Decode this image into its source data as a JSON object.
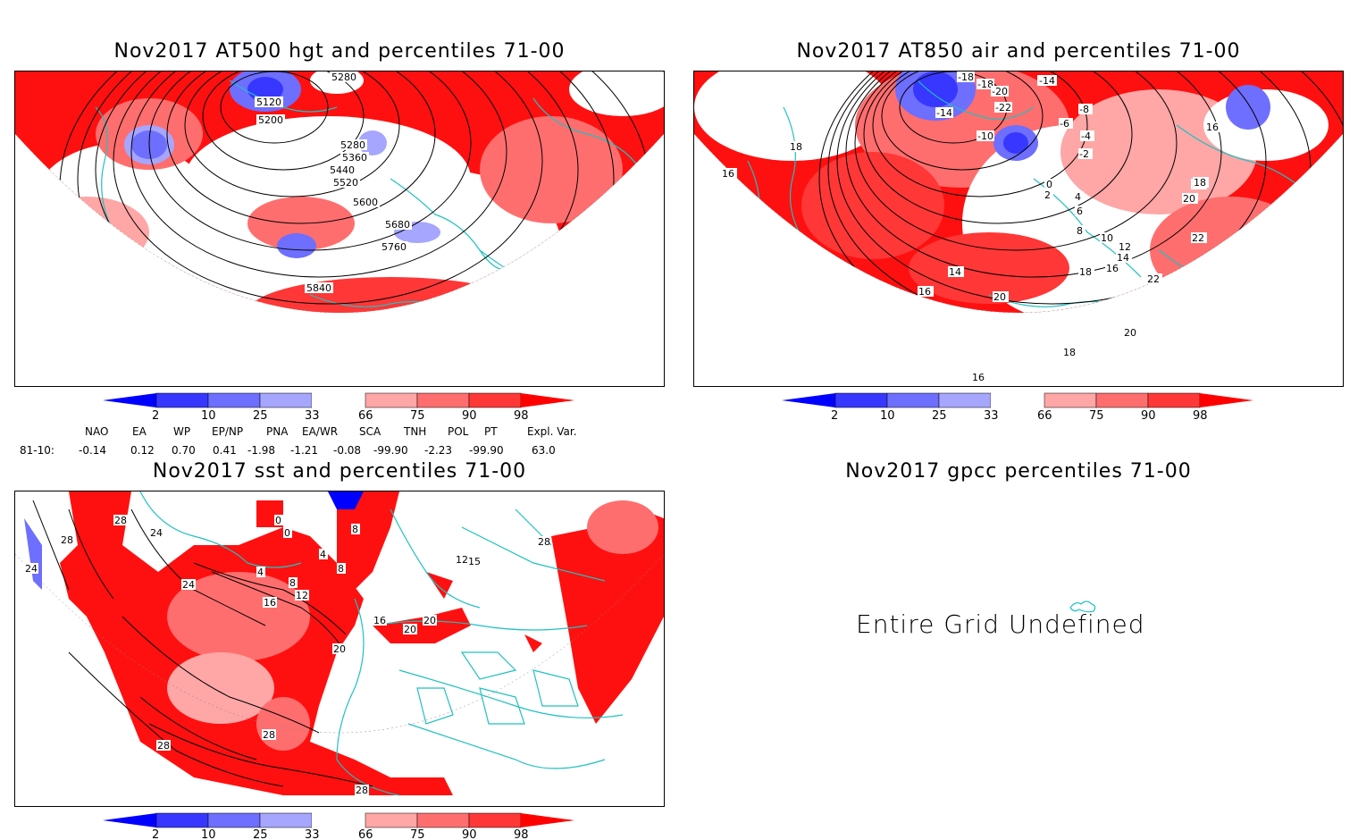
{
  "panels": {
    "hgt": {
      "title": "Nov2017 AT500 hgt and percentiles 71-00",
      "contour_labels": [
        "5280",
        "5120",
        "5200",
        "5280",
        "5360",
        "5440",
        "5520",
        "5600",
        "5680",
        "5760",
        "5840"
      ]
    },
    "air": {
      "title": "Nov2017 AT850 air and percentiles 71-00",
      "contour_labels": [
        "-18",
        "-18",
        "-14",
        "-14",
        "-20",
        "-22",
        "-8",
        "-6",
        "-4",
        "-2",
        "-10",
        "0",
        "2",
        "4",
        "6",
        "8",
        "10",
        "12",
        "14",
        "16",
        "18",
        "20",
        "22",
        "16",
        "18",
        "20",
        "22",
        "14",
        "16",
        "20",
        "18",
        "20",
        "16",
        "16",
        "18"
      ]
    },
    "sst": {
      "title": "Nov2017 sst and percentiles 71-00",
      "contour_labels": [
        "28",
        "24",
        "28",
        "24",
        "0",
        "0",
        "4",
        "4",
        "8",
        "8",
        "8",
        "12",
        "16",
        "16",
        "20",
        "24",
        "28",
        "28",
        "28",
        "20",
        "20",
        "12",
        "15",
        "28"
      ]
    },
    "gpcc": {
      "title": "Nov2017 gpcc percentiles 71-00",
      "message": "Entire Grid Undefined"
    }
  },
  "colorbar": {
    "labels": [
      "2",
      "10",
      "25",
      "33",
      "66",
      "75",
      "90",
      "98"
    ],
    "colors": [
      "#0000ff",
      "#3737ff",
      "#6e6eff",
      "#a6a6ff",
      "#ffffff",
      "#ffa6a6",
      "#ff6e6e",
      "#ff3737",
      "#ff0000"
    ]
  },
  "indices": {
    "header": [
      "NAO",
      "EA",
      "WP",
      "EP/NP",
      "PNA",
      "EA/WR",
      "SCA",
      "TNH",
      "POL",
      "PT",
      "Expl. Var."
    ],
    "row_label": "81-10:",
    "values": [
      "-0.14",
      "0.12",
      "0.70",
      "0.41",
      "-1.98",
      "-1.21",
      "-0.08",
      "-99.90",
      "-2.23",
      "-99.90",
      "63.0"
    ]
  },
  "colors": {
    "land_outline": "#20c0c0",
    "contour": "#000000",
    "frame": "#000000"
  }
}
